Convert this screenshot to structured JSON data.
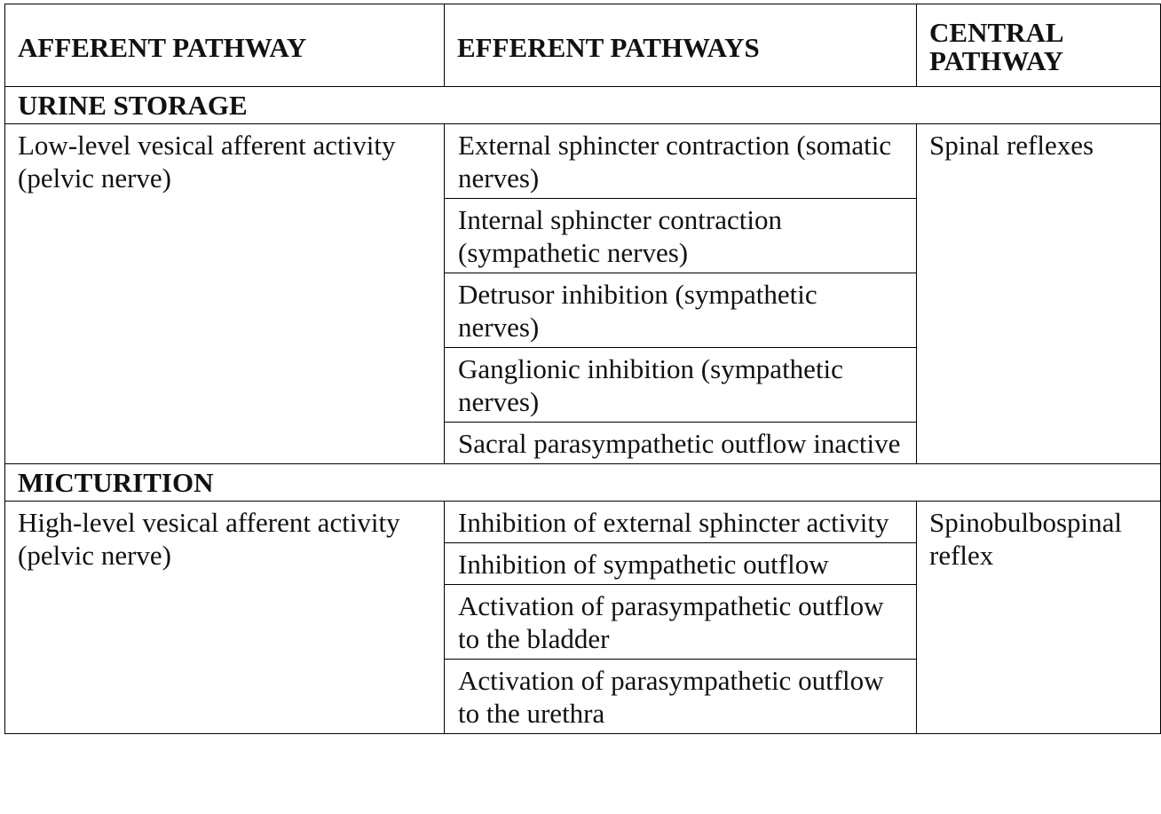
{
  "table": {
    "headers": {
      "afferent": "AFFERENT PATHWAY",
      "efferent": "EFFERENT PATHWAYS",
      "central": "CENTRAL PATHWAY"
    },
    "sections": [
      {
        "title": "URINE STORAGE",
        "afferent": "Low-level vesical afferent activity (pelvic nerve)",
        "central": "Spinal reflexes",
        "efferent": [
          "External sphincter contraction (somatic nerves)",
          "Internal sphincter contraction (sympathetic nerves)",
          "Detrusor inhibition (sympathetic nerves)",
          "Ganglionic inhibition (sympathetic nerves)",
          "Sacral parasympathetic outflow inactive"
        ]
      },
      {
        "title": "MICTURITION",
        "afferent": "High-level vesical afferent activity (pelvic nerve)",
        "central": "Spinobulbospinal reflex",
        "efferent": [
          "Inhibition of external sphincter activity",
          "Inhibition of sympathetic outflow",
          "Activation of parasympathetic outflow to the bladder",
          "Activation of parasympathetic outflow to the urethra"
        ]
      }
    ]
  }
}
